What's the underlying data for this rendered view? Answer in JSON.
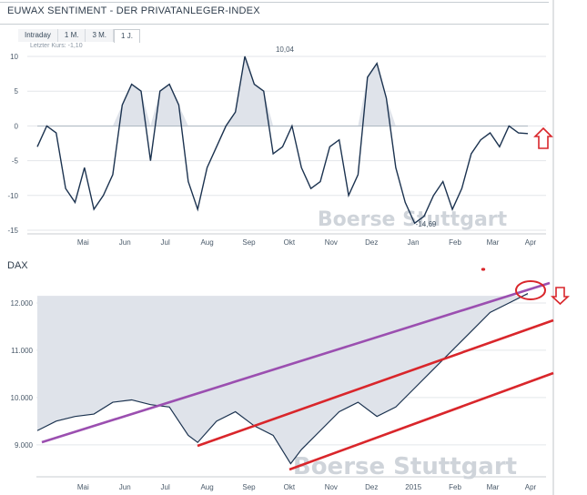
{
  "top_chart": {
    "title": "EUWAX SENTIMENT - DER PRIVATANLEGER-INDEX",
    "tabs": [
      "Intraday",
      "1 M.",
      "3 M.",
      "1 J."
    ],
    "active_tab": "1 J.",
    "last_price_label": "Letzter Kurs: -1,10",
    "watermark": "Boerse Stuttgart",
    "peak_label": "10,04",
    "trough_label": "-14,69",
    "arrow": "up"
  },
  "bottom_chart": {
    "title": "DAX",
    "watermark": "Boerse Stuttgart",
    "arrow": "down",
    "channel_colors": {
      "upper": "#9b4fb0",
      "lower": "#d9262b"
    }
  },
  "colors": {
    "line": "#1c3350",
    "fill": "#dfe3ea",
    "arrow": "#d9262b",
    "grid": "#e3e6ea"
  },
  "chart_data": [
    {
      "type": "area",
      "title": "EUWAX SENTIMENT - DER PRIVATANLEGER-INDEX",
      "ylim": [
        -15,
        10
      ],
      "yticks": [
        "10",
        "5",
        "0",
        "-5",
        "-10",
        "-15"
      ],
      "ytick_values": [
        10,
        5,
        0,
        -5,
        -10,
        -15
      ],
      "months": [
        "Mai",
        "Jun",
        "Jul",
        "Aug",
        "Sep",
        "Okt",
        "Nov",
        "Dez",
        "Jan",
        "Feb",
        "Mar",
        "Apr"
      ],
      "x": [
        "2014-04-11",
        "2014-04-18",
        "2014-04-25",
        "2014-05-02",
        "2014-05-09",
        "2014-05-16",
        "2014-05-23",
        "2014-05-30",
        "2014-06-06",
        "2014-06-13",
        "2014-06-20",
        "2014-06-27",
        "2014-07-04",
        "2014-07-11",
        "2014-07-18",
        "2014-07-25",
        "2014-08-01",
        "2014-08-08",
        "2014-08-15",
        "2014-08-22",
        "2014-08-29",
        "2014-09-05",
        "2014-09-12",
        "2014-09-19",
        "2014-09-26",
        "2014-10-03",
        "2014-10-10",
        "2014-10-17",
        "2014-10-24",
        "2014-10-31",
        "2014-11-07",
        "2014-11-14",
        "2014-11-21",
        "2014-11-28",
        "2014-12-05",
        "2014-12-12",
        "2014-12-19",
        "2014-12-26",
        "2015-01-02",
        "2015-01-09",
        "2015-01-16",
        "2015-01-23",
        "2015-01-30",
        "2015-02-06",
        "2015-02-13",
        "2015-02-20",
        "2015-02-27",
        "2015-03-06",
        "2015-03-13",
        "2015-03-20",
        "2015-03-27",
        "2015-04-03",
        "2015-04-10"
      ],
      "values": [
        -3,
        0,
        -1,
        -9,
        -11,
        -6,
        -12,
        -10,
        -7,
        3,
        6,
        5,
        -5,
        5,
        6,
        3,
        -8,
        -12,
        -6,
        -3,
        0,
        2,
        10,
        6,
        5,
        -4,
        -3,
        0,
        -6,
        -9,
        -8,
        -3,
        -2,
        -10,
        -7,
        7,
        9,
        4,
        -6,
        -11,
        -14,
        -13,
        -10,
        -8,
        -12,
        -9,
        -4,
        -2,
        -1,
        -3,
        0,
        -1,
        -1.1
      ],
      "peak_label": "10,04",
      "trough_label": "-14,69"
    },
    {
      "type": "area",
      "title": "DAX",
      "ylim": [
        8400,
        12500
      ],
      "yticks": [
        "12.000",
        "11.000",
        "10.000",
        "9.000"
      ],
      "ytick_values": [
        12000,
        11000,
        10000,
        9000
      ],
      "months": [
        "Mai",
        "Jun",
        "Jul",
        "Aug",
        "Sep",
        "Okt",
        "Nov",
        "Dez",
        "2015",
        "Feb",
        "Mar",
        "Apr"
      ],
      "x": [
        "2014-04-11",
        "2014-04-25",
        "2014-05-09",
        "2014-05-23",
        "2014-06-06",
        "2014-06-20",
        "2014-07-04",
        "2014-07-18",
        "2014-08-01",
        "2014-08-08",
        "2014-08-22",
        "2014-09-05",
        "2014-09-19",
        "2014-10-03",
        "2014-10-16",
        "2014-10-24",
        "2014-11-07",
        "2014-11-21",
        "2014-12-05",
        "2014-12-19",
        "2015-01-02",
        "2015-01-16",
        "2015-01-30",
        "2015-02-13",
        "2015-02-27",
        "2015-03-13",
        "2015-03-27",
        "2015-04-10"
      ],
      "values": [
        9300,
        9500,
        9600,
        9650,
        9900,
        9950,
        9850,
        9800,
        9200,
        9050,
        9500,
        9700,
        9400,
        9200,
        8600,
        8900,
        9300,
        9700,
        9900,
        9600,
        9800,
        10200,
        10600,
        11000,
        11400,
        11800,
        12000,
        12200
      ]
    }
  ]
}
